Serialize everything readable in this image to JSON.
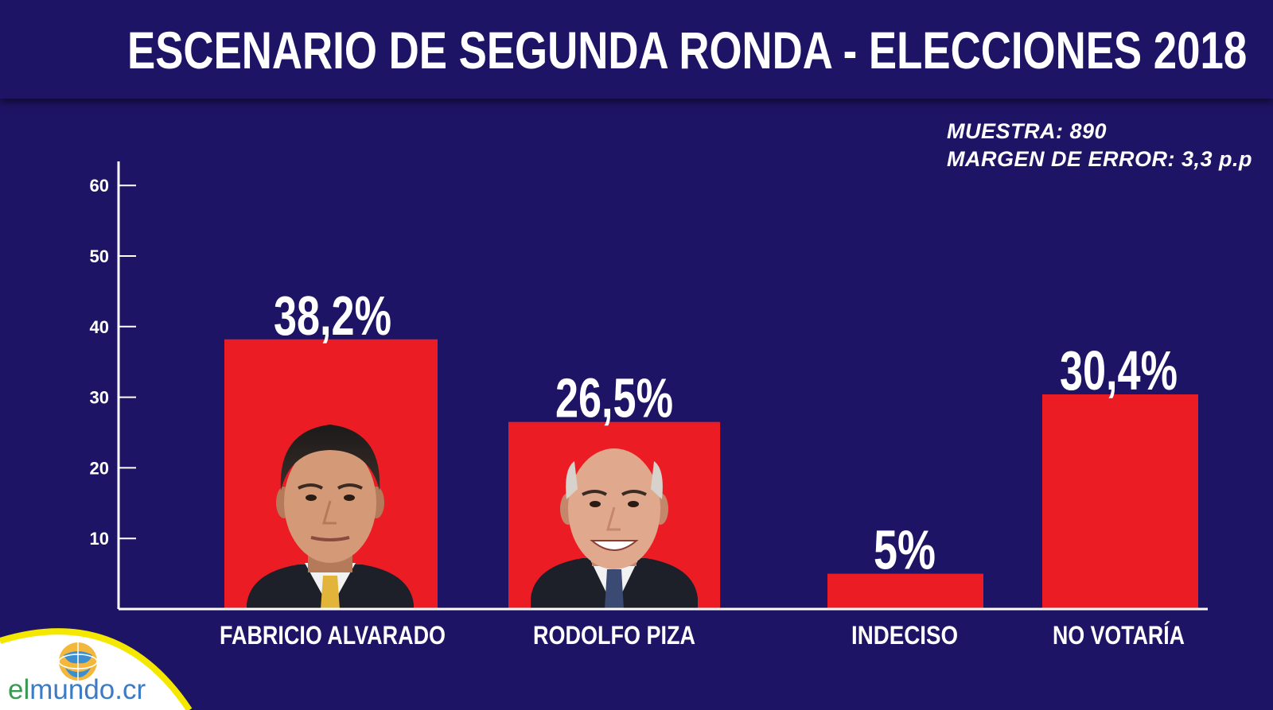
{
  "header": {
    "title": "ESCENARIO DE SEGUNDA RONDA - ELECCIONES 2018"
  },
  "meta": {
    "sample": "MUESTRA: 890",
    "margin": "MARGEN DE ERROR: 3,3 p.p"
  },
  "chart_data": {
    "type": "bar",
    "categories": [
      "FABRICIO ALVARADO",
      "RODOLFO PIZA",
      "INDECISO",
      "NO VOTARÍA"
    ],
    "values": [
      38.2,
      26.5,
      5,
      30.4
    ],
    "value_labels": [
      "38,2%",
      "26,5%",
      "5%",
      "30,4%"
    ],
    "y_ticks": [
      10,
      20,
      30,
      40,
      50,
      60
    ],
    "ylim": [
      0,
      65
    ],
    "grid": false,
    "bar_color": "#ec1c24",
    "title": "",
    "xlabel": "",
    "ylabel": ""
  },
  "logo": {
    "prefix": "el",
    "rest": "mundo.cr",
    "icon": "globe-icon"
  },
  "colors": {
    "background": "#1e1465",
    "accent_yellow": "#f5e800",
    "text": "#ffffff"
  }
}
